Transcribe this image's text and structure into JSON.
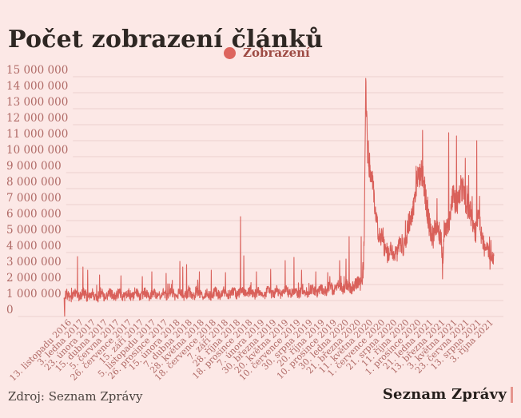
{
  "header": {
    "title": "Počet zobrazení článků"
  },
  "legend": {
    "label": "Zobrazení"
  },
  "footer": {
    "source": "Zdroj: Seznam Zprávy",
    "brand": "Seznam Zprávy"
  },
  "colors": {
    "background": "#fce8e6",
    "title_text": "#2e2723",
    "line": "#d9605a",
    "legend_dot": "#dd655e",
    "legend_text": "#9d4a43",
    "gridline": "#eccfcd",
    "axis_label": "#b06a66",
    "footer_text": "#4c4440",
    "brand_text": "#241e1b",
    "brand_bar": "#e6958e"
  },
  "chart_data": {
    "type": "line",
    "title": "Počet zobrazení článků",
    "series_name": "Zobrazení",
    "legend_position": "top-center",
    "grid": true,
    "ylim": [
      0,
      15000000
    ],
    "y_tick_step": 1000000,
    "y_tick_labels_bottom_up": [
      "0",
      "1 000 000",
      "2 000 000",
      "3 000 000",
      "4 000 000",
      "5 000 000",
      "6 000 000",
      "7 000 000",
      "8 000 000",
      "9 000 000",
      "10 000 000",
      "11 000 000",
      "12 000 000",
      "13 000 000",
      "14 000 000",
      "15 000 000"
    ],
    "x_tick_labels": [
      "13. listopadu 2016",
      "3. ledna 2017",
      "23. února 2017",
      "15. dubna 2017",
      "5. června 2017",
      "26. července 2017",
      "15. září 2017",
      "5. listopadu 2017",
      "26. prosince 2017",
      "15. února 2018",
      "7. dubna 2018",
      "28. května 2018",
      "18. července 2018",
      "7. září 2018",
      "28. října 2018",
      "18. prosince 2018",
      "7. února 2019",
      "30. března 2019",
      "20. května 2019",
      "10. července 2019",
      "30. srpna 2019",
      "20. října 2019",
      "10. prosince 2019",
      "30. ledna 2020",
      "21. března 2020",
      "11. května 2020",
      "1. července 2020",
      "21. srpna 2020",
      "11. října 2020",
      "1. prosince 2020",
      "21. ledna 2021",
      "13. března 2021",
      "3. května 2021",
      "23. června 2021",
      "13. srpna 2021",
      "3. října 2021"
    ],
    "n_points": 1810,
    "noise_seed": 7,
    "trend_keyframes_millions": [
      [
        0,
        1.5
      ],
      [
        2,
        0.4
      ],
      [
        5,
        1.2
      ],
      [
        30,
        1.35
      ],
      [
        120,
        1.3
      ],
      [
        250,
        1.35
      ],
      [
        420,
        1.4
      ],
      [
        600,
        1.4
      ],
      [
        740,
        1.5
      ],
      [
        900,
        1.5
      ],
      [
        1050,
        1.6
      ],
      [
        1150,
        1.8
      ],
      [
        1230,
        1.95
      ],
      [
        1256,
        2.4
      ],
      [
        1261,
        3.2
      ],
      [
        1264,
        5.2
      ],
      [
        1266,
        7.5
      ],
      [
        1268,
        11.5
      ],
      [
        1270,
        14.3
      ],
      [
        1272,
        13.2
      ],
      [
        1274,
        12.2
      ],
      [
        1277,
        10.4
      ],
      [
        1280,
        10.3
      ],
      [
        1285,
        9.9
      ],
      [
        1290,
        9.2
      ],
      [
        1298,
        8.1
      ],
      [
        1308,
        6.9
      ],
      [
        1320,
        5.8
      ],
      [
        1334,
        4.8
      ],
      [
        1352,
        4.1
      ],
      [
        1378,
        3.9
      ],
      [
        1402,
        4.1
      ],
      [
        1428,
        4.5
      ],
      [
        1448,
        5.3
      ],
      [
        1464,
        6.4
      ],
      [
        1480,
        7.8
      ],
      [
        1494,
        8.7
      ],
      [
        1506,
        9.5
      ],
      [
        1512,
        9.0
      ],
      [
        1520,
        7.4
      ],
      [
        1530,
        6.3
      ],
      [
        1542,
        5.7
      ],
      [
        1554,
        4.9
      ],
      [
        1566,
        5.3
      ],
      [
        1578,
        5.7
      ],
      [
        1588,
        4.8
      ],
      [
        1593,
        3.2
      ],
      [
        1600,
        5.0
      ],
      [
        1608,
        5.7
      ],
      [
        1622,
        6.4
      ],
      [
        1634,
        7.2
      ],
      [
        1648,
        7.3
      ],
      [
        1660,
        7.7
      ],
      [
        1672,
        7.7
      ],
      [
        1686,
        8.0
      ],
      [
        1698,
        7.0
      ],
      [
        1710,
        6.2
      ],
      [
        1722,
        5.7
      ],
      [
        1734,
        5.5
      ],
      [
        1742,
        6.2
      ],
      [
        1752,
        5.4
      ],
      [
        1766,
        4.7
      ],
      [
        1780,
        4.2
      ],
      [
        1792,
        3.7
      ],
      [
        1800,
        4.0
      ],
      [
        1809,
        3.8
      ]
    ],
    "noise_amplitude_keyframes_millions": [
      [
        0,
        0.45
      ],
      [
        400,
        0.4
      ],
      [
        900,
        0.42
      ],
      [
        1160,
        0.45
      ],
      [
        1250,
        0.6
      ],
      [
        1270,
        1.3
      ],
      [
        1300,
        1.05
      ],
      [
        1340,
        0.8
      ],
      [
        1380,
        0.7
      ],
      [
        1430,
        0.85
      ],
      [
        1470,
        1.05
      ],
      [
        1510,
        1.15
      ],
      [
        1555,
        0.95
      ],
      [
        1600,
        1.0
      ],
      [
        1650,
        1.15
      ],
      [
        1700,
        1.15
      ],
      [
        1745,
        0.95
      ],
      [
        1780,
        0.8
      ],
      [
        1809,
        0.65
      ]
    ],
    "spike_days_millions": [
      [
        3,
        0.02
      ],
      [
        57,
        3.75
      ],
      [
        80,
        3.1
      ],
      [
        100,
        2.9
      ],
      [
        150,
        2.6
      ],
      [
        240,
        2.55
      ],
      [
        330,
        2.5
      ],
      [
        370,
        2.8
      ],
      [
        430,
        2.7
      ],
      [
        488,
        3.45
      ],
      [
        500,
        3.1
      ],
      [
        516,
        3.25
      ],
      [
        570,
        2.8
      ],
      [
        620,
        2.9
      ],
      [
        680,
        2.75
      ],
      [
        743,
        6.25
      ],
      [
        757,
        3.8
      ],
      [
        810,
        2.8
      ],
      [
        870,
        2.95
      ],
      [
        931,
        3.5
      ],
      [
        968,
        3.7
      ],
      [
        1000,
        2.9
      ],
      [
        1060,
        2.8
      ],
      [
        1110,
        2.75
      ],
      [
        1160,
        3.5
      ],
      [
        1187,
        3.6
      ],
      [
        1200,
        5.0
      ],
      [
        1251,
        5.0
      ],
      [
        1270,
        14.9
      ],
      [
        1278,
        9.6
      ],
      [
        1281,
        11.0
      ],
      [
        1509,
        11.65
      ],
      [
        1593,
        2.35
      ],
      [
        1619,
        11.5
      ],
      [
        1652,
        11.3
      ],
      [
        1689,
        9.9
      ],
      [
        1737,
        11.0
      ],
      [
        1793,
        2.95
      ]
    ]
  }
}
